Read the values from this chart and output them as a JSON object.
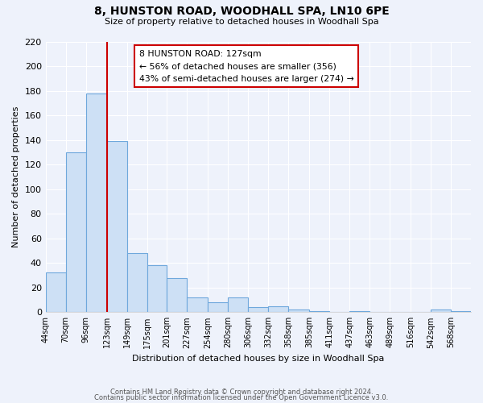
{
  "title": "8, HUNSTON ROAD, WOODHALL SPA, LN10 6PE",
  "subtitle": "Size of property relative to detached houses in Woodhall Spa",
  "xlabel": "Distribution of detached houses by size in Woodhall Spa",
  "ylabel": "Number of detached properties",
  "footer_line1": "Contains HM Land Registry data © Crown copyright and database right 2024.",
  "footer_line2": "Contains public sector information licensed under the Open Government Licence v3.0.",
  "bin_labels": [
    "44sqm",
    "70sqm",
    "96sqm",
    "123sqm",
    "149sqm",
    "175sqm",
    "201sqm",
    "227sqm",
    "254sqm",
    "280sqm",
    "306sqm",
    "332sqm",
    "358sqm",
    "385sqm",
    "411sqm",
    "437sqm",
    "463sqm",
    "489sqm",
    "516sqm",
    "542sqm",
    "568sqm"
  ],
  "bar_heights": [
    32,
    130,
    178,
    139,
    48,
    38,
    28,
    12,
    8,
    12,
    4,
    5,
    2,
    1,
    0,
    1,
    0,
    0,
    0,
    2,
    1
  ],
  "bar_color": "#cde0f5",
  "bar_edge_color": "#6fa8dc",
  "property_line_x": 123,
  "property_line_color": "#cc0000",
  "annotation_title": "8 HUNSTON ROAD: 127sqm",
  "annotation_line1": "← 56% of detached houses are smaller (356)",
  "annotation_line2": "43% of semi-detached houses are larger (274) →",
  "annotation_box_color": "#ffffff",
  "annotation_box_edge": "#cc0000",
  "ylim": [
    0,
    220
  ],
  "yticks": [
    0,
    20,
    40,
    60,
    80,
    100,
    120,
    140,
    160,
    180,
    200,
    220
  ],
  "background_color": "#eef2fb",
  "grid_color": "#ffffff",
  "bin_edges": [
    44,
    70,
    96,
    123,
    149,
    175,
    201,
    227,
    254,
    280,
    306,
    332,
    358,
    385,
    411,
    437,
    463,
    489,
    516,
    542,
    568,
    594
  ]
}
